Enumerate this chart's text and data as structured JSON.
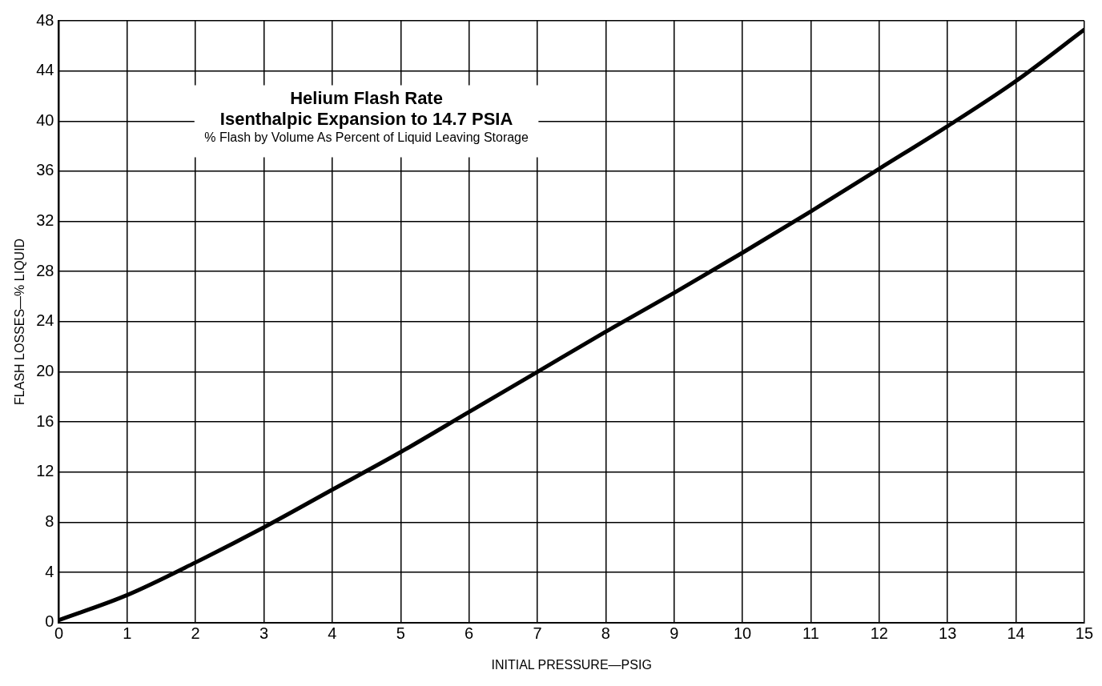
{
  "chart_data": {
    "type": "line",
    "title": "Helium Flash Rate",
    "subtitle": "Isenthalpic Expansion to 14.7 PSIA",
    "annotations": [
      "% Flash by Volume As Percent of Liquid Leaving Storage"
    ],
    "xlabel": "INITIAL PRESSURE—PSIG",
    "ylabel": "FLASH LOSSES—% LIQUID",
    "x": [
      0,
      1,
      2,
      3,
      4,
      5,
      6,
      7,
      8,
      9,
      10,
      11,
      12,
      13,
      14,
      15
    ],
    "series": [
      {
        "color": "#000000",
        "values": [
          0.2,
          2.2,
          4.8,
          7.6,
          10.6,
          13.6,
          16.8,
          20,
          23.2,
          26.3,
          29.5,
          32.8,
          36.2,
          39.6,
          43.2,
          47.3
        ]
      }
    ],
    "xlim": [
      0,
      15
    ],
    "xticks": [
      0,
      1,
      2,
      3,
      4,
      5,
      6,
      7,
      8,
      9,
      10,
      11,
      12,
      13,
      14,
      15
    ],
    "ylim": [
      0,
      48
    ],
    "yticks": [
      0,
      4,
      8,
      12,
      16,
      20,
      24,
      28,
      32,
      36,
      40,
      44,
      48
    ],
    "grid": true,
    "legend": false,
    "marker": "none",
    "line_style": "solid"
  }
}
